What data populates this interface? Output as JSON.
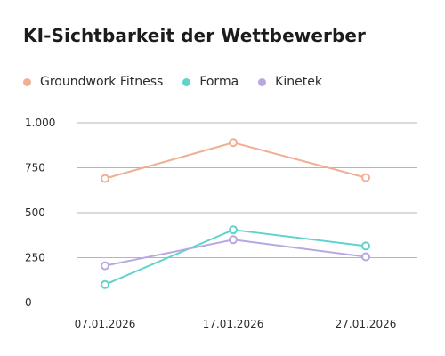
{
  "chart_data": {
    "type": "line",
    "title": "KI-Sichtbarkeit der Wettbewerber",
    "x": [
      "07.01.2026",
      "17.01.2026",
      "27.01.2026"
    ],
    "ylim": [
      0,
      1000
    ],
    "yticks": [
      0,
      250,
      500,
      750,
      1000
    ],
    "ytick_labels": [
      "0",
      "250",
      "500",
      "750",
      "1.000"
    ],
    "grid": true,
    "legend_position": "top-left",
    "series": [
      {
        "name": "Groundwork Fitness",
        "color": "#f0ae92",
        "values": [
          690,
          890,
          695
        ]
      },
      {
        "name": "Forma",
        "color": "#5fd3cc",
        "values": [
          100,
          405,
          315
        ]
      },
      {
        "name": "Kinetek",
        "color": "#b9a7e2",
        "values": [
          205,
          350,
          255
        ]
      }
    ]
  }
}
